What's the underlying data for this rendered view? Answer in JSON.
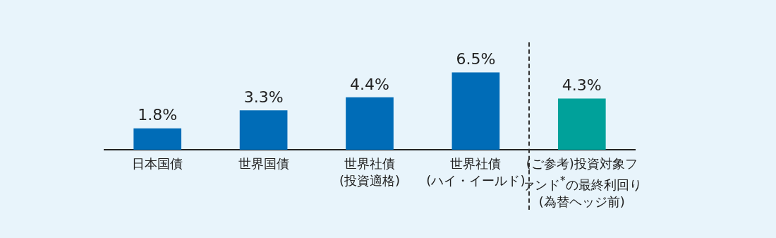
{
  "chart_data": {
    "type": "bar",
    "categories": [
      "日本国債",
      "世界国債",
      "世界社債\n(投資適格)",
      "世界社債\n(ハイ・イールド)",
      "(ご参考)投資対象ファンド$^{*}$の最終利回り\n(為替ヘッジ前)"
    ],
    "values": [
      1.8,
      3.3,
      4.4,
      6.5,
      4.3
    ],
    "colors": [
      "#006cb7",
      "#006cb7",
      "#006cb7",
      "#006cb7",
      "#00a19a"
    ],
    "value_labels": [
      "1.8%",
      "3.3%",
      "4.4%",
      "6.5%",
      "4.3%"
    ],
    "grid": false,
    "legend": false
  }
}
